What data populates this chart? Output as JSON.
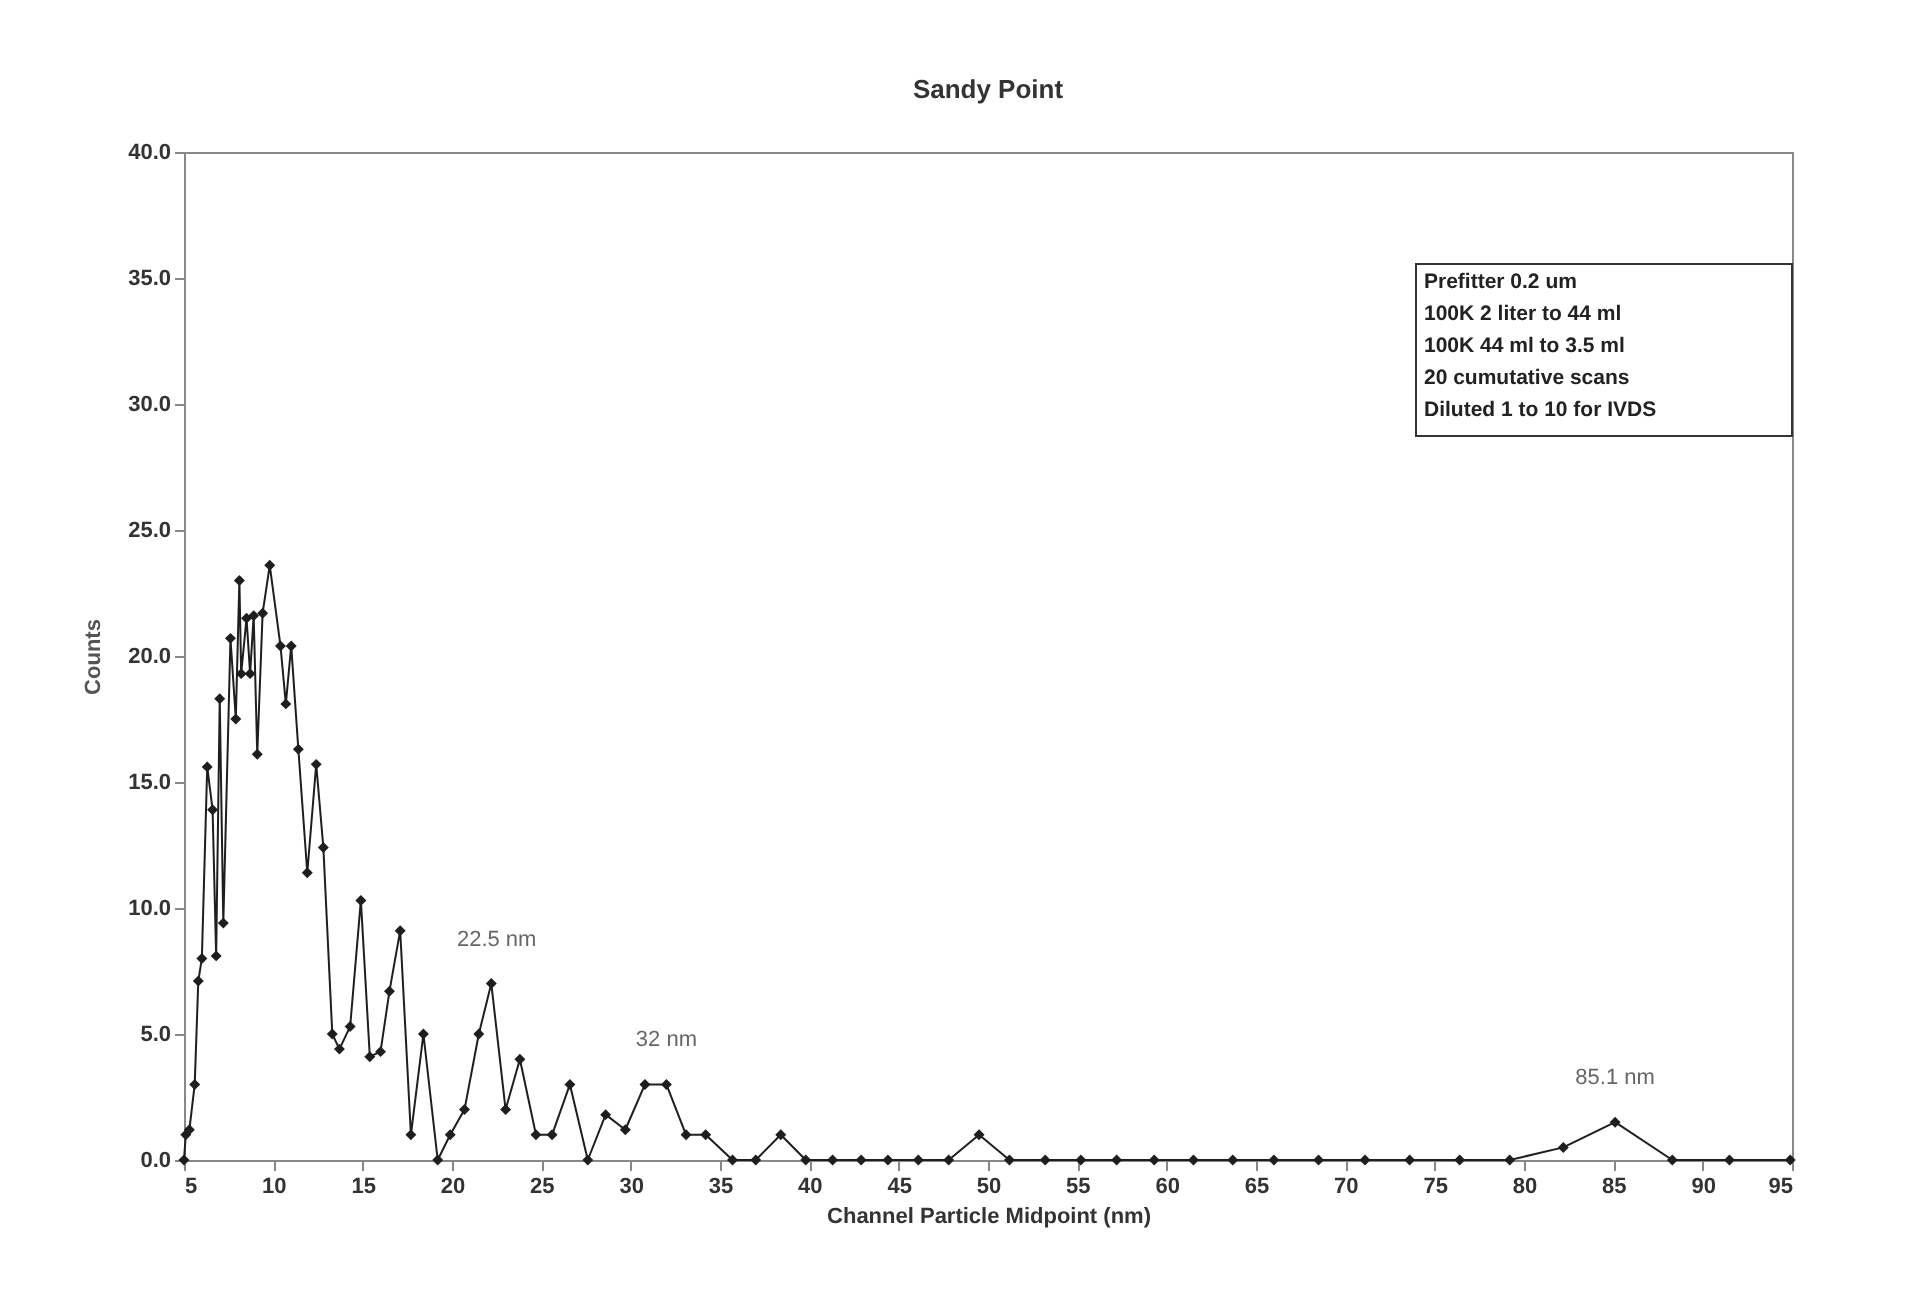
{
  "chart_data": {
    "type": "line",
    "title": "Sandy Point",
    "xlabel": "Channel Particle Midpoint (nm)",
    "ylabel": "Counts",
    "x": [
      5.0,
      5.1,
      5.3,
      5.6,
      5.8,
      6.0,
      6.3,
      6.6,
      6.8,
      7.0,
      7.2,
      7.6,
      7.9,
      8.1,
      8.2,
      8.5,
      8.7,
      8.9,
      9.1,
      9.4,
      9.8,
      10.4,
      10.7,
      11.0,
      11.4,
      11.9,
      12.4,
      12.8,
      13.3,
      13.7,
      14.3,
      14.9,
      15.4,
      16.0,
      16.5,
      17.1,
      17.7,
      18.4,
      19.2,
      19.9,
      20.7,
      21.5,
      22.2,
      23.0,
      23.8,
      24.7,
      25.6,
      26.6,
      27.6,
      28.6,
      29.7,
      30.8,
      32.0,
      33.1,
      34.2,
      35.7,
      37.0,
      38.4,
      39.8,
      41.3,
      42.9,
      44.4,
      46.1,
      47.8,
      49.5,
      51.2,
      53.2,
      55.2,
      57.2,
      59.3,
      61.5,
      63.7,
      66.0,
      68.5,
      71.1,
      73.6,
      76.4,
      79.2,
      82.2,
      85.1,
      88.3,
      91.5,
      94.9
    ],
    "series": [
      {
        "color": "#1e1e1e",
        "values": [
          0,
          1.0,
          1.2,
          3.0,
          7.1,
          8.0,
          15.6,
          13.9,
          8.1,
          18.3,
          9.4,
          20.7,
          17.5,
          23.0,
          19.3,
          21.5,
          19.3,
          21.6,
          16.1,
          21.7,
          23.6,
          20.4,
          18.1,
          20.4,
          16.3,
          11.4,
          15.7,
          12.4,
          5.0,
          4.4,
          5.3,
          10.3,
          4.1,
          4.3,
          6.7,
          9.1,
          1.0,
          5.0,
          0,
          1.0,
          2.0,
          5.0,
          7.0,
          2.0,
          4.0,
          1.0,
          1.0,
          3.0,
          0,
          1.8,
          1.2,
          3.0,
          3.0,
          1.0,
          1.0,
          0,
          0,
          1.0,
          0,
          0,
          0,
          0,
          0,
          0,
          1.0,
          0,
          0,
          0,
          0,
          0,
          0,
          0,
          0,
          0,
          0,
          0,
          0,
          0,
          0.5,
          1.5,
          0,
          0,
          0
        ]
      }
    ],
    "xlim": [
      5,
      95
    ],
    "xticks": [
      5,
      10,
      15,
      20,
      25,
      30,
      35,
      40,
      45,
      50,
      55,
      60,
      65,
      70,
      75,
      80,
      85,
      90,
      95
    ],
    "ylim": [
      0,
      40
    ],
    "yticks": [
      {
        "value": 0,
        "label": "0.0"
      },
      {
        "value": 5,
        "label": "5.0"
      },
      {
        "value": 10,
        "label": "10.0"
      },
      {
        "value": 15,
        "label": "15.0"
      },
      {
        "value": 20,
        "label": "20.0"
      },
      {
        "value": 25,
        "label": "25.0"
      },
      {
        "value": 30,
        "label": "30.0"
      },
      {
        "value": 35,
        "label": "35.0"
      },
      {
        "value": 40,
        "label": "40.0"
      }
    ],
    "grid": false,
    "marker": "diamond",
    "line_style": "solid",
    "annotations": [
      {
        "text": "22.5 nm",
        "x": 22.5,
        "y": 7.0
      },
      {
        "text": "32 nm",
        "x": 32.0,
        "y": 3.0
      },
      {
        "text": "85.1 nm",
        "x": 85.1,
        "y": 1.5
      },
      "Prefitter 0.2 um\n100K 2 liter to 44 ml\n100K 44 ml to 3.5 ml\n20 cumutative scans\nDiluted 1 to 10 for IVDS"
    ]
  }
}
